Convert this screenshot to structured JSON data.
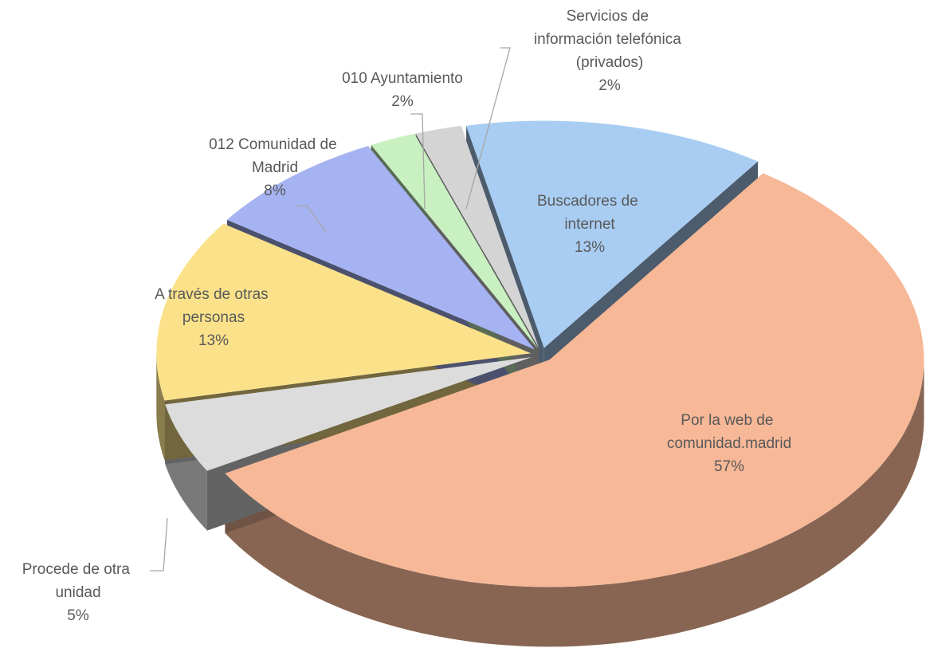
{
  "chart_data": {
    "type": "pie3d",
    "categories": [
      "Buscadores de internet",
      "Por la web de comunidad.madrid",
      "Procede de otra unidad",
      "A través de otras personas",
      "012 Comunidad de Madrid",
      "010 Ayuntamiento",
      "Servicios de información telefónica (privados)"
    ],
    "values": [
      13,
      57,
      5,
      13,
      8,
      2,
      2
    ],
    "value_labels": [
      "13%",
      "57%",
      "5%",
      "13%",
      "8%",
      "2%",
      "2%"
    ],
    "colors": [
      "#a9cdf2",
      "#f7b897",
      "#dcdcdc",
      "#fbe28a",
      "#a6b3f2",
      "#c8f0c0",
      "#d4d4d4"
    ]
  }
}
